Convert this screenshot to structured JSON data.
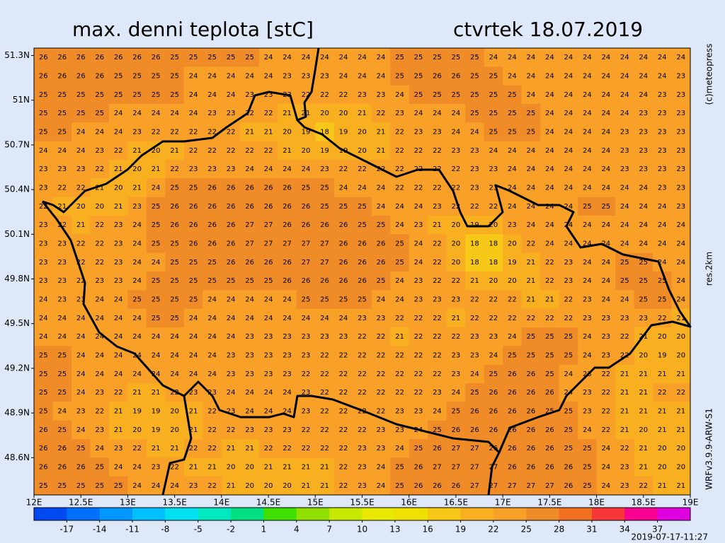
{
  "map": {
    "title": "max. denni teplota [stC]",
    "date": "ctvrtek 18.07.2019",
    "credit": "(c)meteopress",
    "resolution": "res.2km",
    "model": "WRFv3.9.9-ARW-S1",
    "timestamp": "2019-07-17-11:27",
    "xlim": [
      12,
      19
    ],
    "ylim": [
      48.35,
      51.35
    ],
    "xticks": [
      {
        "value": 12,
        "label": "12E"
      },
      {
        "value": 12.5,
        "label": "12.5E"
      },
      {
        "value": 13,
        "label": "13E"
      },
      {
        "value": 13.5,
        "label": "13.5E"
      },
      {
        "value": 14,
        "label": "14E"
      },
      {
        "value": 14.5,
        "label": "14.5E"
      },
      {
        "value": 15,
        "label": "15E"
      },
      {
        "value": 15.5,
        "label": "15.5E"
      },
      {
        "value": 16,
        "label": "16E"
      },
      {
        "value": 16.5,
        "label": "16.5E"
      },
      {
        "value": 17,
        "label": "17E"
      },
      {
        "value": 17.5,
        "label": "17.5E"
      },
      {
        "value": 18,
        "label": "18E"
      },
      {
        "value": 18.5,
        "label": "18.5E"
      },
      {
        "value": 19,
        "label": "19E"
      }
    ],
    "yticks": [
      {
        "value": 51.3,
        "label": "51.3N"
      },
      {
        "value": 51,
        "label": "51N"
      },
      {
        "value": 50.7,
        "label": "50.7N"
      },
      {
        "value": 50.4,
        "label": "50.4N"
      },
      {
        "value": 50.1,
        "label": "50.1N"
      },
      {
        "value": 49.8,
        "label": "49.8N"
      },
      {
        "value": 49.5,
        "label": "49.5N"
      },
      {
        "value": 49.2,
        "label": "49.2N"
      },
      {
        "value": 48.9,
        "label": "48.9N"
      },
      {
        "value": 48.6,
        "label": "48.6N"
      }
    ],
    "colorbar": {
      "lim": [
        -20,
        40
      ],
      "ticks": [
        -17,
        -14,
        -11,
        -8,
        -5,
        -2,
        1,
        4,
        7,
        10,
        13,
        16,
        19,
        22,
        25,
        28,
        31,
        34,
        37
      ],
      "colors": [
        "#0048f0",
        "#0070ff",
        "#0098ff",
        "#00c0ff",
        "#00e0f0",
        "#00e8c0",
        "#00e080",
        "#40e000",
        "#90e000",
        "#c8e800",
        "#e8e800",
        "#f0e000",
        "#f8c818",
        "#f8b020",
        "#f8a028",
        "#f08c28",
        "#f07020",
        "#f83838",
        "#f80090",
        "#e000e0"
      ]
    },
    "grid": {
      "rows": [
        [
          26,
          26,
          26,
          26,
          26,
          26,
          26,
          25,
          25,
          25,
          25,
          25,
          24,
          24,
          24,
          24,
          24,
          24,
          24,
          25,
          25,
          25,
          25,
          25,
          24,
          24,
          24,
          24,
          24,
          24,
          24,
          24,
          24,
          24,
          24
        ],
        [
          26,
          26,
          26,
          26,
          25,
          25,
          25,
          25,
          24,
          24,
          24,
          24,
          24,
          23,
          23,
          23,
          24,
          24,
          24,
          25,
          25,
          26,
          26,
          25,
          25,
          24,
          24,
          24,
          24,
          24,
          24,
          24,
          24,
          24,
          23
        ],
        [
          25,
          25,
          25,
          25,
          25,
          25,
          25,
          25,
          24,
          24,
          24,
          23,
          23,
          23,
          22,
          22,
          22,
          23,
          23,
          24,
          25,
          25,
          25,
          25,
          25,
          25,
          24,
          24,
          24,
          24,
          24,
          24,
          24,
          23,
          23
        ],
        [
          25,
          25,
          25,
          25,
          24,
          24,
          24,
          24,
          24,
          23,
          23,
          22,
          22,
          21,
          21,
          20,
          20,
          21,
          22,
          23,
          24,
          24,
          24,
          25,
          25,
          25,
          25,
          24,
          24,
          24,
          24,
          24,
          23,
          23,
          23
        ],
        [
          25,
          25,
          24,
          24,
          24,
          23,
          22,
          22,
          22,
          22,
          22,
          21,
          21,
          20,
          19,
          18,
          19,
          20,
          21,
          22,
          23,
          23,
          24,
          24,
          25,
          25,
          25,
          24,
          24,
          24,
          24,
          23,
          23,
          23,
          23
        ],
        [
          24,
          24,
          24,
          23,
          22,
          21,
          20,
          21,
          22,
          22,
          22,
          22,
          22,
          21,
          20,
          19,
          19,
          20,
          21,
          22,
          22,
          22,
          23,
          23,
          24,
          24,
          24,
          24,
          24,
          24,
          24,
          23,
          23,
          23,
          23
        ],
        [
          23,
          23,
          23,
          22,
          21,
          20,
          21,
          22,
          23,
          23,
          23,
          24,
          24,
          24,
          24,
          23,
          22,
          22,
          22,
          22,
          22,
          22,
          22,
          23,
          23,
          24,
          24,
          24,
          24,
          24,
          24,
          23,
          23,
          23,
          23
        ],
        [
          23,
          22,
          22,
          21,
          20,
          21,
          24,
          25,
          25,
          26,
          26,
          26,
          26,
          26,
          25,
          25,
          24,
          24,
          24,
          22,
          22,
          22,
          22,
          23,
          23,
          24,
          24,
          24,
          24,
          24,
          24,
          24,
          24,
          23,
          23
        ],
        [
          22,
          21,
          20,
          20,
          21,
          23,
          25,
          26,
          26,
          26,
          26,
          26,
          26,
          26,
          26,
          25,
          25,
          25,
          24,
          24,
          24,
          23,
          22,
          22,
          22,
          24,
          24,
          24,
          24,
          25,
          25,
          24,
          24,
          24,
          23
        ],
        [
          23,
          22,
          21,
          22,
          23,
          24,
          25,
          26,
          26,
          26,
          26,
          27,
          27,
          26,
          26,
          26,
          26,
          25,
          25,
          24,
          23,
          21,
          20,
          19,
          20,
          23,
          24,
          24,
          24,
          24,
          24,
          24,
          24,
          24,
          24
        ],
        [
          23,
          23,
          22,
          22,
          23,
          24,
          25,
          25,
          26,
          26,
          26,
          27,
          27,
          27,
          27,
          27,
          26,
          26,
          26,
          25,
          24,
          22,
          20,
          18,
          18,
          20,
          22,
          24,
          24,
          24,
          24,
          24,
          24,
          24,
          24
        ],
        [
          23,
          23,
          22,
          22,
          23,
          24,
          24,
          25,
          25,
          25,
          26,
          26,
          26,
          26,
          27,
          27,
          26,
          26,
          26,
          25,
          24,
          22,
          20,
          18,
          18,
          19,
          21,
          22,
          23,
          24,
          24,
          25,
          25,
          24,
          24
        ],
        [
          23,
          23,
          22,
          23,
          23,
          24,
          25,
          25,
          25,
          25,
          25,
          25,
          25,
          26,
          26,
          26,
          26,
          26,
          25,
          24,
          23,
          22,
          22,
          21,
          20,
          20,
          21,
          22,
          23,
          24,
          24,
          25,
          25,
          25,
          24
        ],
        [
          24,
          23,
          23,
          24,
          24,
          25,
          25,
          25,
          25,
          24,
          24,
          24,
          24,
          24,
          25,
          25,
          25,
          25,
          24,
          24,
          23,
          23,
          23,
          22,
          22,
          22,
          21,
          21,
          22,
          23,
          24,
          24,
          25,
          25,
          24
        ],
        [
          24,
          24,
          24,
          24,
          24,
          24,
          25,
          25,
          24,
          24,
          24,
          24,
          24,
          24,
          24,
          24,
          24,
          23,
          23,
          22,
          22,
          22,
          21,
          22,
          22,
          22,
          22,
          22,
          22,
          23,
          23,
          23,
          23,
          22,
          21
        ],
        [
          24,
          24,
          24,
          24,
          24,
          24,
          24,
          24,
          24,
          24,
          24,
          23,
          23,
          23,
          23,
          23,
          23,
          22,
          22,
          21,
          22,
          22,
          22,
          23,
          23,
          24,
          25,
          25,
          25,
          24,
          23,
          22,
          21,
          20,
          20
        ],
        [
          25,
          25,
          24,
          24,
          24,
          24,
          24,
          24,
          24,
          24,
          23,
          23,
          23,
          23,
          23,
          22,
          22,
          22,
          22,
          22,
          22,
          22,
          23,
          23,
          24,
          25,
          25,
          25,
          25,
          24,
          23,
          22,
          20,
          19,
          20
        ],
        [
          25,
          25,
          24,
          24,
          24,
          24,
          24,
          24,
          24,
          24,
          23,
          23,
          23,
          23,
          22,
          22,
          22,
          22,
          22,
          22,
          22,
          22,
          23,
          24,
          25,
          26,
          26,
          25,
          24,
          23,
          22,
          21,
          21,
          21,
          21
        ],
        [
          25,
          25,
          24,
          23,
          22,
          21,
          21,
          22,
          23,
          23,
          24,
          24,
          24,
          24,
          23,
          22,
          22,
          22,
          22,
          22,
          22,
          23,
          24,
          25,
          26,
          26,
          26,
          26,
          24,
          23,
          22,
          21,
          21,
          22,
          22
        ],
        [
          25,
          24,
          23,
          22,
          21,
          19,
          19,
          20,
          21,
          22,
          23,
          24,
          24,
          24,
          23,
          22,
          22,
          22,
          22,
          23,
          23,
          24,
          25,
          26,
          26,
          26,
          26,
          25,
          25,
          23,
          22,
          21,
          21,
          21,
          21
        ],
        [
          26,
          25,
          24,
          23,
          21,
          20,
          19,
          20,
          21,
          22,
          22,
          23,
          23,
          23,
          22,
          22,
          22,
          22,
          23,
          23,
          24,
          25,
          26,
          26,
          26,
          26,
          26,
          26,
          25,
          24,
          22,
          21,
          20,
          21,
          21
        ],
        [
          26,
          26,
          25,
          24,
          23,
          22,
          21,
          21,
          22,
          22,
          21,
          21,
          22,
          22,
          22,
          22,
          22,
          23,
          23,
          24,
          25,
          26,
          27,
          27,
          26,
          26,
          26,
          26,
          25,
          25,
          24,
          22,
          21,
          20,
          20
        ],
        [
          26,
          26,
          26,
          25,
          24,
          24,
          23,
          22,
          21,
          21,
          20,
          20,
          21,
          21,
          21,
          21,
          22,
          23,
          24,
          25,
          26,
          27,
          27,
          27,
          27,
          26,
          26,
          26,
          26,
          25,
          24,
          23,
          21,
          20,
          20
        ],
        [
          25,
          25,
          25,
          25,
          25,
          24,
          24,
          24,
          23,
          22,
          21,
          20,
          20,
          20,
          21,
          21,
          22,
          23,
          24,
          25,
          26,
          26,
          26,
          27,
          27,
          27,
          27,
          27,
          26,
          25,
          24,
          23,
          22,
          21,
          21
        ]
      ]
    }
  }
}
